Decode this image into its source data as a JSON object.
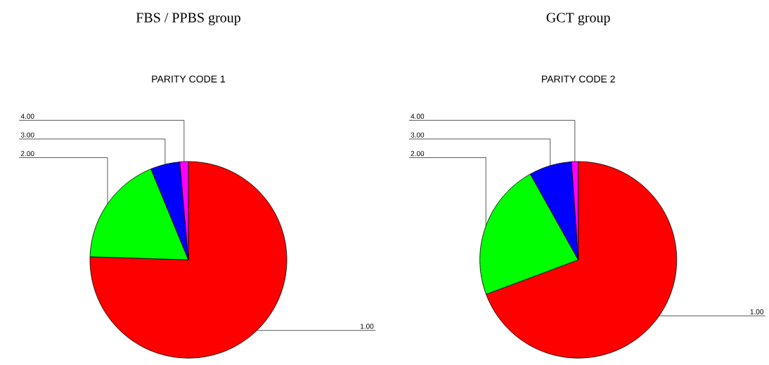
{
  "chart_data": [
    {
      "type": "pie",
      "title": "FBS / PPBS group",
      "subtitle": "PARITY CODE 1",
      "categories": [
        "1.00",
        "2.00",
        "3.00",
        "4.00"
      ],
      "values": [
        75.5,
        18.3,
        4.8,
        1.4
      ],
      "colors": [
        "#ff0000",
        "#00ff00",
        "#0000ff",
        "#ff00ff"
      ]
    },
    {
      "type": "pie",
      "title": "GCT group",
      "subtitle": "PARITY CODE 2",
      "categories": [
        "1.00",
        "2.00",
        "3.00",
        "4.00"
      ],
      "values": [
        69.3,
        22.6,
        7.0,
        1.1
      ],
      "colors": [
        "#ff0000",
        "#00ff00",
        "#0000ff",
        "#ff00ff"
      ]
    }
  ]
}
